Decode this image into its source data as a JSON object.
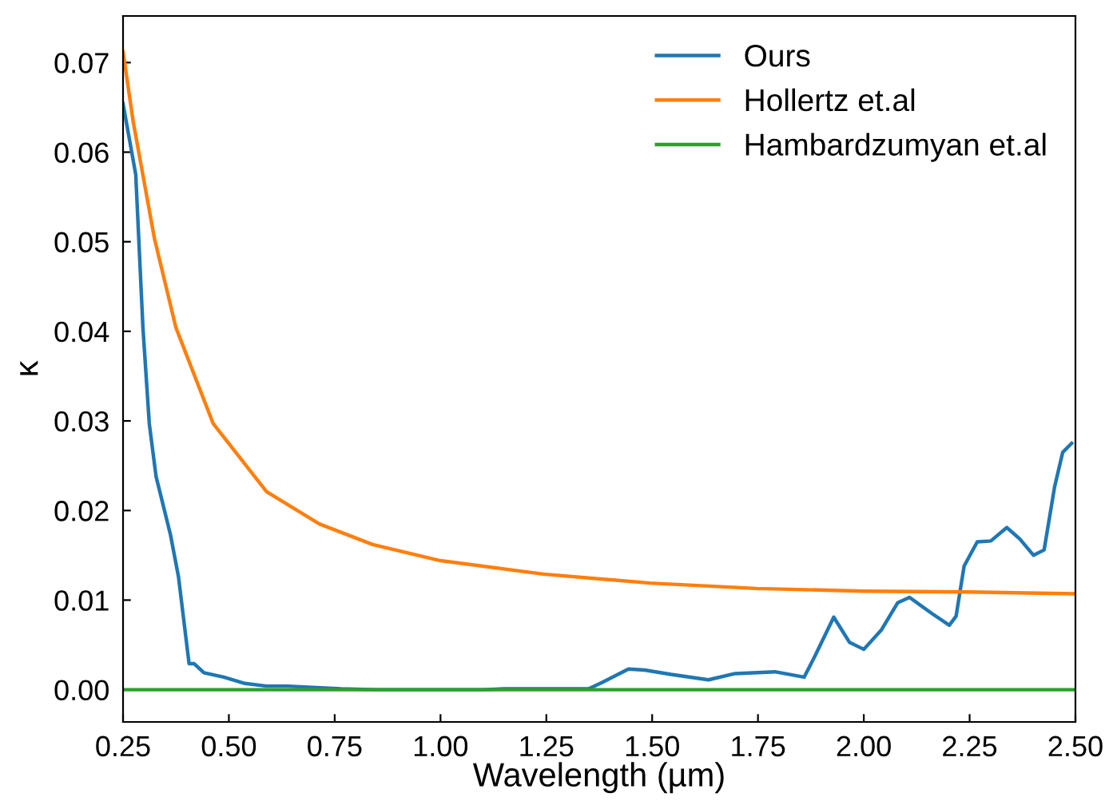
{
  "chart_data": {
    "type": "line",
    "xlabel": "Wavelength (µm)",
    "ylabel": "κ",
    "xlim": [
      0.25,
      2.5
    ],
    "ylim": [
      -0.0036,
      0.0752
    ],
    "xticks": [
      {
        "value": 0.25,
        "label": "0.25"
      },
      {
        "value": 0.5,
        "label": "0.50"
      },
      {
        "value": 0.75,
        "label": "0.75"
      },
      {
        "value": 1.0,
        "label": "1.00"
      },
      {
        "value": 1.25,
        "label": "1.25"
      },
      {
        "value": 1.5,
        "label": "1.50"
      },
      {
        "value": 1.75,
        "label": "1.75"
      },
      {
        "value": 2.0,
        "label": "2.00"
      },
      {
        "value": 2.25,
        "label": "2.25"
      },
      {
        "value": 2.5,
        "label": "2.50"
      }
    ],
    "yticks": [
      {
        "value": 0,
        "label": "0.00"
      },
      {
        "value": 0.01,
        "label": "0.01"
      },
      {
        "value": 0.02,
        "label": "0.02"
      },
      {
        "value": 0.03,
        "label": "0.03"
      },
      {
        "value": 0.04,
        "label": "0.04"
      },
      {
        "value": 0.05,
        "label": "0.05"
      },
      {
        "value": 0.06,
        "label": "0.06"
      },
      {
        "value": 0.07,
        "label": "0.07"
      }
    ],
    "grid": false,
    "legend": "top right",
    "marker": "none",
    "line_style": "solid",
    "series": [
      {
        "name": "Ours",
        "color": "#1f77b4",
        "x": [
          0.25,
          0.28,
          0.297,
          0.312,
          0.328,
          0.362,
          0.381,
          0.406,
          0.418,
          0.441,
          0.488,
          0.538,
          0.589,
          0.639,
          0.765,
          0.85,
          1.1,
          1.15,
          1.35,
          1.381,
          1.444,
          1.482,
          1.545,
          1.633,
          1.696,
          1.79,
          1.859,
          1.885,
          1.929,
          1.966,
          2.0,
          2.042,
          2.08,
          2.108,
          2.161,
          2.202,
          2.218,
          2.237,
          2.268,
          2.3,
          2.338,
          2.369,
          2.401,
          2.426,
          2.451,
          2.47,
          2.491
        ],
        "values": [
          0.0654,
          0.0575,
          0.0404,
          0.0297,
          0.0238,
          0.0173,
          0.0126,
          0.0029,
          0.0029,
          0.0019,
          0.0014,
          0.0007,
          0.0004,
          0.0004,
          0.0001,
          0,
          0,
          0.0001,
          0.0001,
          0.0008,
          0.0023,
          0.0022,
          0.0017,
          0.0011,
          0.0018,
          0.002,
          0.0014,
          0.0038,
          0.0081,
          0.0053,
          0.0045,
          0.0067,
          0.0097,
          0.0103,
          0.0085,
          0.0072,
          0.0082,
          0.0138,
          0.0165,
          0.0166,
          0.0181,
          0.0168,
          0.015,
          0.0156,
          0.0227,
          0.0265,
          0.0275
        ]
      },
      {
        "name": "Hollertz et.al",
        "color": "#ff7f0e",
        "x": [
          0.25,
          0.274,
          0.324,
          0.375,
          0.463,
          0.589,
          0.714,
          0.84,
          1.0,
          1.243,
          1.495,
          1.746,
          2.0,
          2.25,
          2.5
        ],
        "values": [
          0.0712,
          0.0634,
          0.0504,
          0.0404,
          0.0297,
          0.0221,
          0.0185,
          0.0162,
          0.0144,
          0.0129,
          0.0119,
          0.0113,
          0.011,
          0.0109,
          0.0107
        ]
      },
      {
        "name": "Hambardzumyan et.al",
        "color": "#2ca02c",
        "x": [
          0.25,
          2.5
        ],
        "values": [
          0,
          0
        ]
      }
    ]
  }
}
